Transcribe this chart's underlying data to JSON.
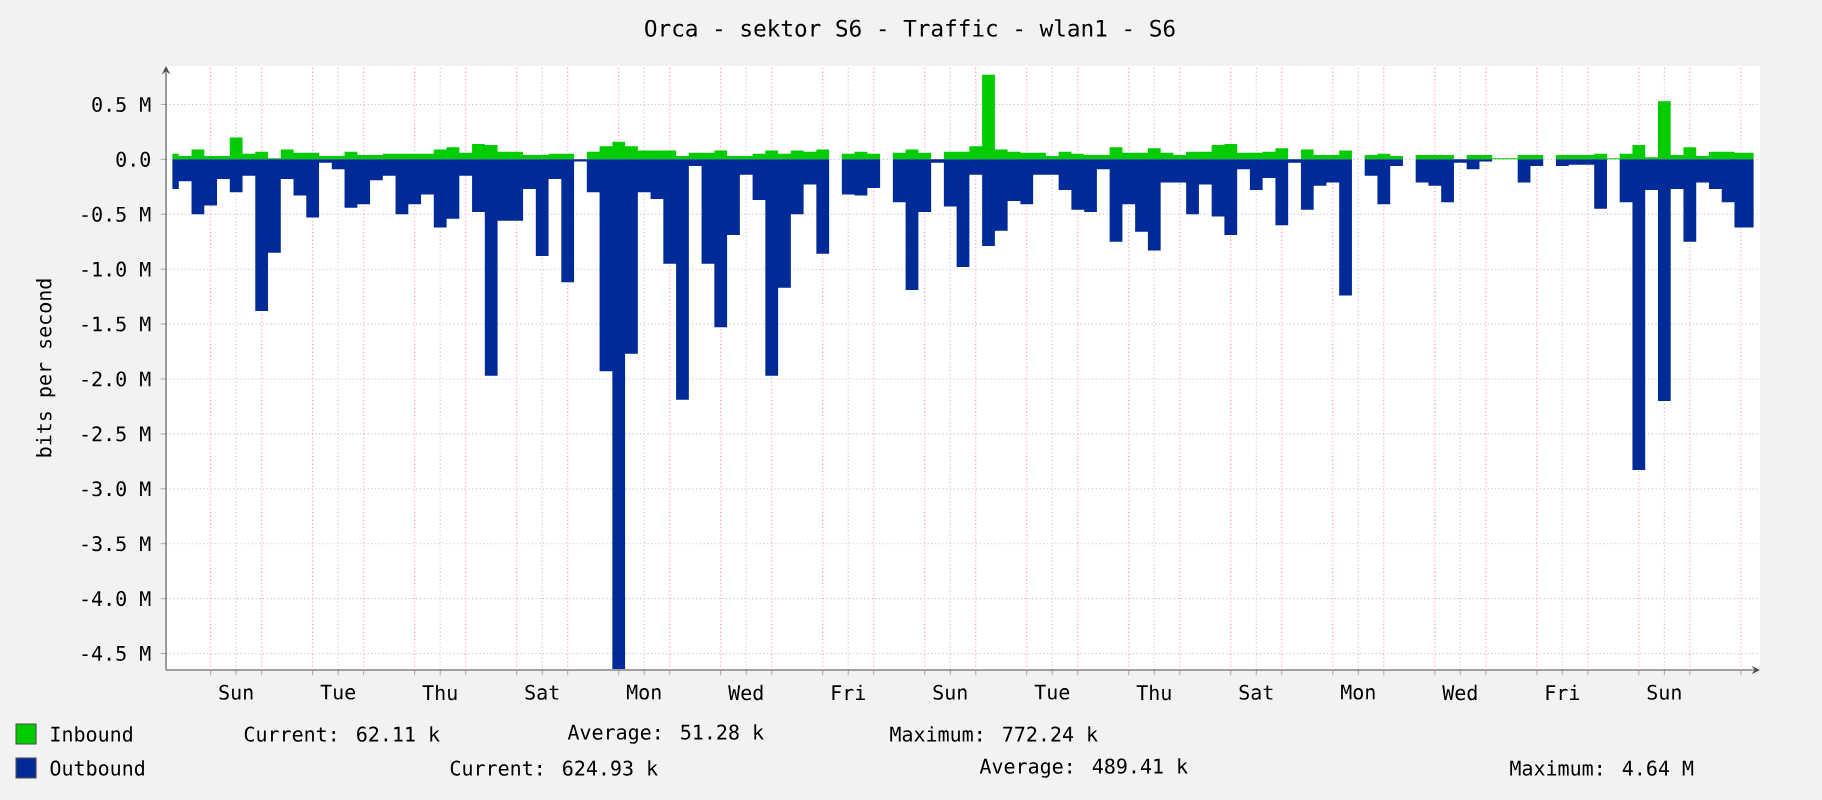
{
  "chart_data": {
    "type": "area",
    "title": "Orca - sektor S6 - Traffic - wlan1 - S6",
    "ylabel": "bits per second",
    "categories": [
      null,
      null,
      null,
      null,
      null,
      "Sun",
      null,
      null,
      null,
      null,
      null,
      null,
      null,
      "Tue",
      null,
      null,
      null,
      null,
      null,
      null,
      null,
      "Thu",
      null,
      null,
      null,
      null,
      null,
      null,
      null,
      "Sat",
      null,
      null,
      null,
      null,
      null,
      null,
      null,
      "Mon",
      null,
      null,
      null,
      null,
      null,
      null,
      null,
      "Wed",
      null,
      null,
      null,
      null,
      null,
      null,
      null,
      "Fri",
      null,
      null,
      null,
      null,
      null,
      null,
      null,
      "Sun",
      null,
      null,
      null,
      null,
      null,
      null,
      null,
      "Tue",
      null,
      null,
      null,
      null,
      null,
      null,
      null,
      "Thu",
      null,
      null,
      null,
      null,
      null,
      null,
      null,
      "Sat",
      null,
      null,
      null,
      null,
      null,
      null,
      null,
      "Mon",
      null,
      null,
      null,
      null,
      null,
      null,
      null,
      "Wed",
      null,
      null,
      null,
      null,
      null,
      null,
      null,
      "Fri",
      null,
      null,
      null,
      null,
      null,
      null,
      null,
      "Sun",
      null,
      null,
      null,
      null,
      null,
      null,
      null
    ],
    "ylim": [
      -4.65,
      0.85
    ],
    "yticks": [
      {
        "value": 0.5,
        "label": "0.5 M"
      },
      {
        "value": 0,
        "label": "0.0"
      },
      {
        "value": -0.5,
        "label": "-0.5 M"
      },
      {
        "value": -1,
        "label": "-1.0 M"
      },
      {
        "value": -1.5,
        "label": "-1.5 M"
      },
      {
        "value": -2,
        "label": "-2.0 M"
      },
      {
        "value": -2.5,
        "label": "-2.5 M"
      },
      {
        "value": -3,
        "label": "-3.0 M"
      },
      {
        "value": -3.5,
        "label": "-3.5 M"
      },
      {
        "value": -4,
        "label": "-4.0 M"
      },
      {
        "value": -4.5,
        "label": "-4.5 M"
      }
    ],
    "grid": true,
    "legend": "bottom",
    "series": [
      {
        "name": "Inbound",
        "color": "#00cc00",
        "values": [
          0.05,
          0.03,
          0.09,
          0.03,
          0.03,
          0.2,
          0.05,
          0.07,
          0.01,
          0.09,
          0.06,
          0.06,
          0.03,
          0.03,
          0.07,
          0.04,
          0.04,
          0.05,
          0.05,
          0.05,
          0.05,
          0.09,
          0.11,
          0.06,
          0.14,
          0.13,
          0.07,
          0.07,
          0.04,
          0.04,
          0.05,
          0.05,
          0,
          0.07,
          0.12,
          0.16,
          0.12,
          0.08,
          0.08,
          0.08,
          0.03,
          0.06,
          0.06,
          0.08,
          0.03,
          0.03,
          0.05,
          0.08,
          0.05,
          0.08,
          0.07,
          0.09,
          0,
          0.05,
          0.07,
          0.05,
          0,
          0.06,
          0.09,
          0.06,
          0,
          0.07,
          0.07,
          0.12,
          0.77,
          0.09,
          0.07,
          0.06,
          0.06,
          0.03,
          0.07,
          0.05,
          0.04,
          0.04,
          0.11,
          0.06,
          0.06,
          0.1,
          0.06,
          0.04,
          0.07,
          0.07,
          0.13,
          0.14,
          0.06,
          0.06,
          0.07,
          0.1,
          0,
          0.09,
          0.04,
          0.04,
          0.08,
          0,
          0.04,
          0.05,
          0.03,
          0,
          0.04,
          0.04,
          0.04,
          0,
          0.04,
          0.04,
          0.01,
          0.01,
          0.04,
          0.04,
          0,
          0.04,
          0.04,
          0.04,
          0.05,
          0.01,
          0.05,
          0.13,
          0.02,
          0.53,
          0.04,
          0.11,
          0.03,
          0.07,
          0.07,
          0.06,
          0.06
        ]
      },
      {
        "name": "Outbound",
        "color": "#002a97",
        "values": [
          -0.27,
          -0.2,
          -0.5,
          -0.42,
          -0.18,
          -0.3,
          -0.15,
          -1.38,
          -0.85,
          -0.18,
          -0.33,
          -0.53,
          -0.03,
          -0.09,
          -0.44,
          -0.41,
          -0.19,
          -0.15,
          -0.5,
          -0.41,
          -0.32,
          -0.62,
          -0.54,
          -0.15,
          -0.48,
          -1.97,
          -0.56,
          -0.56,
          -0.27,
          -0.88,
          -0.18,
          -1.12,
          -0.02,
          -0.3,
          -1.93,
          -4.64,
          -1.77,
          -0.3,
          -0.36,
          -0.95,
          -2.19,
          -0.06,
          -0.95,
          -1.53,
          -0.69,
          -0.14,
          -0.37,
          -1.97,
          -1.17,
          -0.5,
          -0.23,
          -0.86,
          0,
          -0.32,
          -0.33,
          -0.26,
          0,
          -0.39,
          -1.19,
          -0.48,
          -0.03,
          -0.43,
          -0.98,
          -0.14,
          -0.79,
          -0.65,
          -0.38,
          -0.41,
          -0.14,
          -0.14,
          -0.28,
          -0.46,
          -0.48,
          -0.09,
          -0.75,
          -0.41,
          -0.66,
          -0.83,
          -0.21,
          -0.21,
          -0.5,
          -0.23,
          -0.52,
          -0.69,
          -0.09,
          -0.28,
          -0.17,
          -0.6,
          -0.03,
          -0.46,
          -0.24,
          -0.21,
          -1.24,
          0,
          -0.15,
          -0.41,
          -0.06,
          0,
          -0.21,
          -0.24,
          -0.39,
          -0.03,
          -0.09,
          -0.02,
          0,
          0,
          -0.21,
          -0.06,
          0,
          -0.06,
          -0.05,
          -0.05,
          -0.45,
          0,
          -0.39,
          -2.83,
          -0.28,
          -2.2,
          -0.27,
          -0.75,
          -0.21,
          -0.27,
          -0.39,
          -0.62,
          -0.62
        ]
      }
    ],
    "annotations": [
      "Current: 62.11 k",
      "Average: 51.28 k",
      "Maximum: 772.24 k",
      "Current: 624.93 k",
      "Average: 489.41 k",
      "Maximum: 4.64 M"
    ]
  }
}
